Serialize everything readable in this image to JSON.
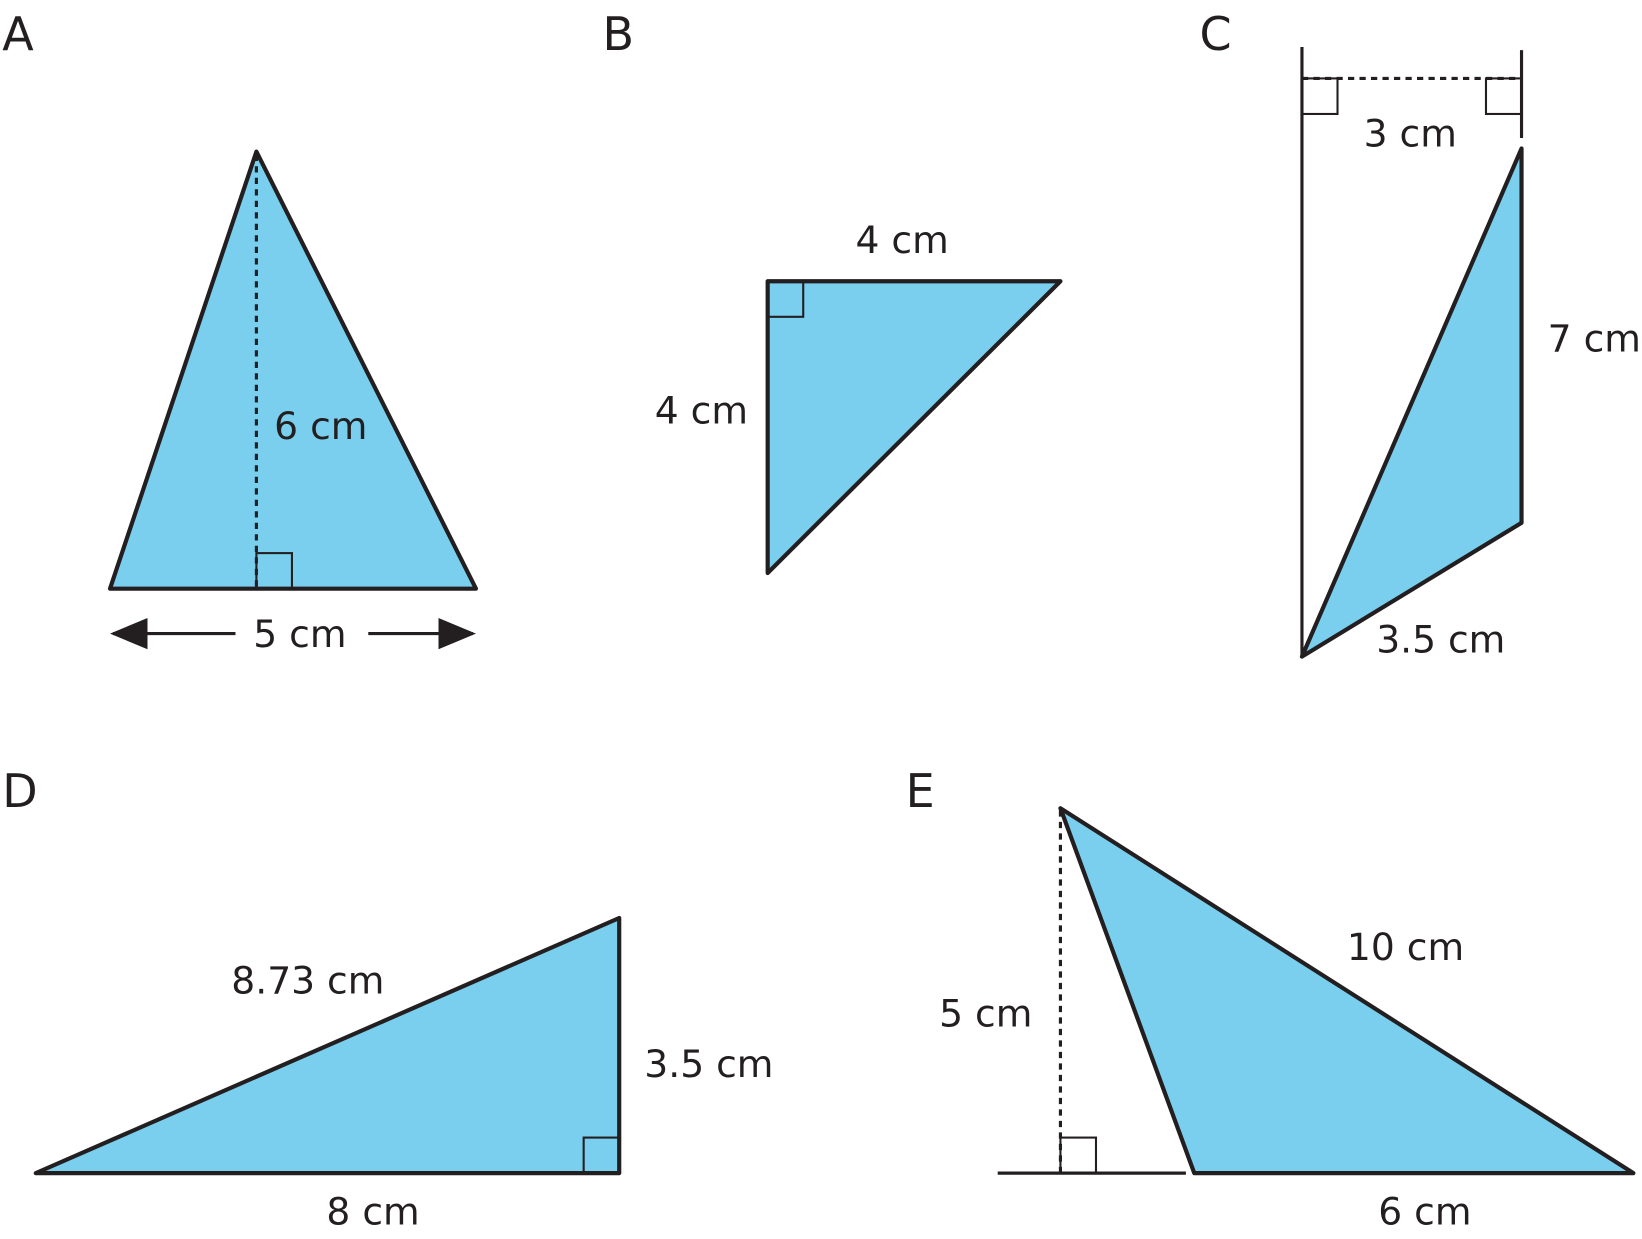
{
  "colors": {
    "fill": "#7acfee",
    "stroke": "#231f20"
  },
  "figures": [
    {
      "letter": "A",
      "labels": {
        "height": "6 cm",
        "base": "5 cm"
      }
    },
    {
      "letter": "B",
      "labels": {
        "top": "4 cm",
        "left": "4 cm"
      }
    },
    {
      "letter": "C",
      "labels": {
        "top": "3 cm",
        "right": "7 cm",
        "bottom": "3.5 cm"
      }
    },
    {
      "letter": "D",
      "labels": {
        "hyp": "8.73 cm",
        "right": "3.5 cm",
        "base": "8 cm"
      }
    },
    {
      "letter": "E",
      "labels": {
        "height": "5 cm",
        "side": "10 cm",
        "base": "6 cm"
      }
    }
  ]
}
